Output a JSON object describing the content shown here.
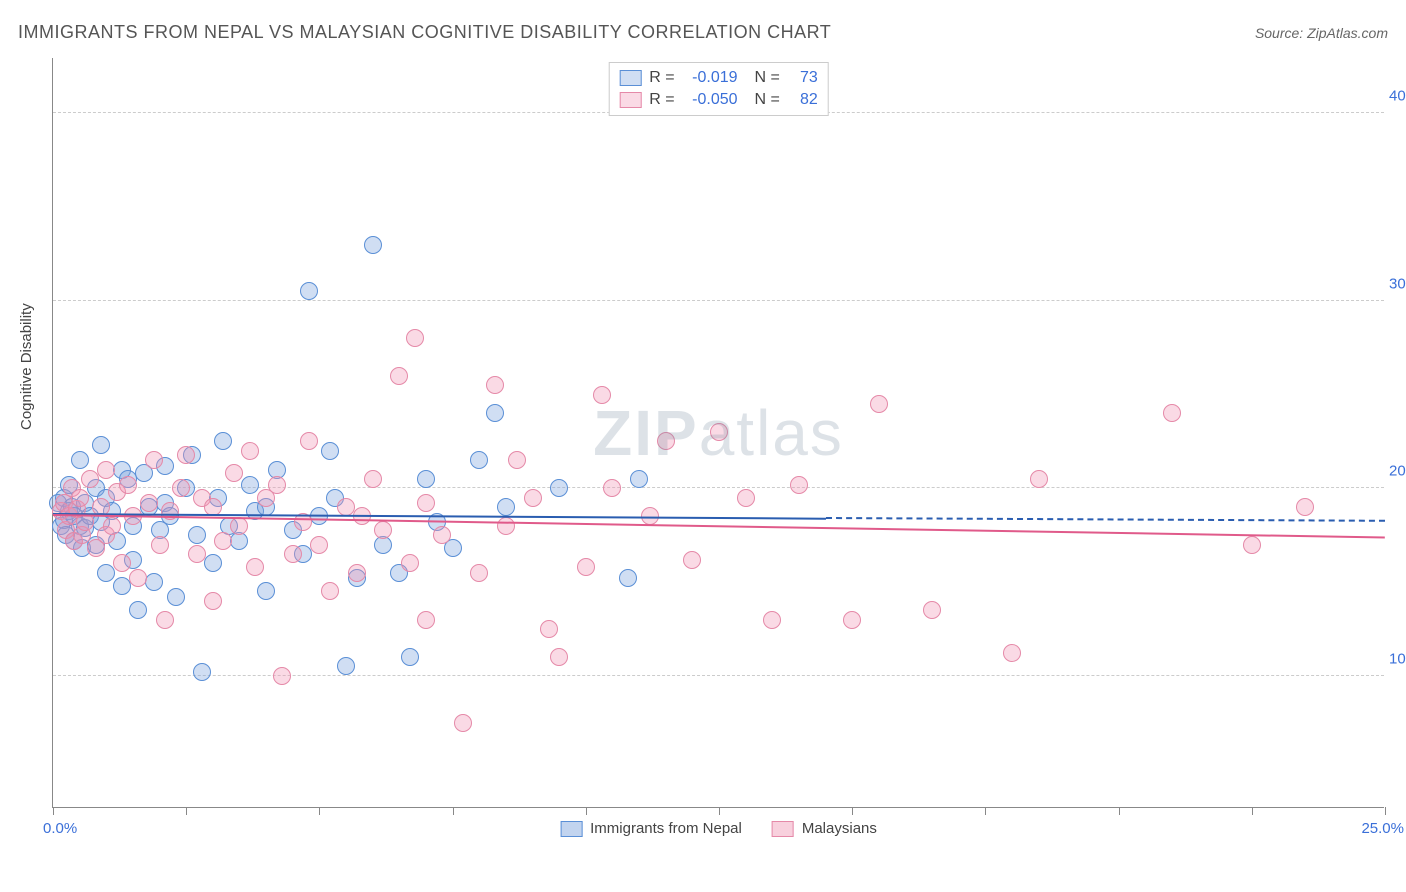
{
  "title": "IMMIGRANTS FROM NEPAL VS MALAYSIAN COGNITIVE DISABILITY CORRELATION CHART",
  "source": "Source: ZipAtlas.com",
  "ylabel": "Cognitive Disability",
  "watermark_bold": "ZIP",
  "watermark_light": "atlas",
  "chart": {
    "type": "scatter",
    "xlim": [
      0,
      25
    ],
    "ylim": [
      3,
      43
    ],
    "xticks": [
      0,
      2.5,
      5,
      7.5,
      10,
      12.5,
      15,
      17.5,
      20,
      22.5,
      25
    ],
    "yticks": [
      10,
      20,
      30,
      40
    ],
    "ytick_labels": [
      "10.0%",
      "20.0%",
      "30.0%",
      "40.0%"
    ],
    "xtick_label_min": "0.0%",
    "xtick_label_max": "25.0%",
    "ytick_color": "#3a6fd8",
    "grid_color": "#cccccc",
    "background_color": "#ffffff",
    "marker_radius": 9,
    "marker_stroke_width": 1.2,
    "series": [
      {
        "name": "Immigrants from Nepal",
        "fill": "rgba(120,160,220,0.35)",
        "stroke": "#5a8fd6",
        "line_color": "#2a5db0",
        "R": "-0.019",
        "N": "73",
        "trend": {
          "x1": 0,
          "y1": 18.6,
          "x2_solid": 14.5,
          "y2_solid": 18.35,
          "x2": 25,
          "y2": 18.2
        },
        "points": [
          [
            0.1,
            19.2
          ],
          [
            0.15,
            18.0
          ],
          [
            0.2,
            19.5
          ],
          [
            0.2,
            18.3
          ],
          [
            0.25,
            17.5
          ],
          [
            0.3,
            20.2
          ],
          [
            0.3,
            18.8
          ],
          [
            0.35,
            19.0
          ],
          [
            0.4,
            17.2
          ],
          [
            0.4,
            18.5
          ],
          [
            0.5,
            21.5
          ],
          [
            0.5,
            18.0
          ],
          [
            0.55,
            16.8
          ],
          [
            0.6,
            19.2
          ],
          [
            0.6,
            17.9
          ],
          [
            0.7,
            18.5
          ],
          [
            0.8,
            20.0
          ],
          [
            0.8,
            17.0
          ],
          [
            0.9,
            22.3
          ],
          [
            0.9,
            18.2
          ],
          [
            1.0,
            19.5
          ],
          [
            1.0,
            15.5
          ],
          [
            1.1,
            18.8
          ],
          [
            1.2,
            17.2
          ],
          [
            1.3,
            21.0
          ],
          [
            1.3,
            14.8
          ],
          [
            1.4,
            20.5
          ],
          [
            1.5,
            18.0
          ],
          [
            1.5,
            16.2
          ],
          [
            1.6,
            13.5
          ],
          [
            1.7,
            20.8
          ],
          [
            1.8,
            19.0
          ],
          [
            1.9,
            15.0
          ],
          [
            2.0,
            17.8
          ],
          [
            2.1,
            21.2
          ],
          [
            2.1,
            19.2
          ],
          [
            2.2,
            18.5
          ],
          [
            2.3,
            14.2
          ],
          [
            2.5,
            20.0
          ],
          [
            2.6,
            21.8
          ],
          [
            2.7,
            17.5
          ],
          [
            2.8,
            10.2
          ],
          [
            3.0,
            16.0
          ],
          [
            3.1,
            19.5
          ],
          [
            3.2,
            22.5
          ],
          [
            3.3,
            18.0
          ],
          [
            3.5,
            17.2
          ],
          [
            3.7,
            20.2
          ],
          [
            3.8,
            18.8
          ],
          [
            4.0,
            14.5
          ],
          [
            4.0,
            19.0
          ],
          [
            4.2,
            21.0
          ],
          [
            4.5,
            17.8
          ],
          [
            4.7,
            16.5
          ],
          [
            4.8,
            30.5
          ],
          [
            5.0,
            18.5
          ],
          [
            5.2,
            22.0
          ],
          [
            5.3,
            19.5
          ],
          [
            5.5,
            10.5
          ],
          [
            5.7,
            15.2
          ],
          [
            6.0,
            33.0
          ],
          [
            6.2,
            17.0
          ],
          [
            6.5,
            15.5
          ],
          [
            6.7,
            11.0
          ],
          [
            7.0,
            20.5
          ],
          [
            7.2,
            18.2
          ],
          [
            7.5,
            16.8
          ],
          [
            8.0,
            21.5
          ],
          [
            8.3,
            24.0
          ],
          [
            8.5,
            19.0
          ],
          [
            9.5,
            20.0
          ],
          [
            10.8,
            15.2
          ],
          [
            11.0,
            20.5
          ]
        ]
      },
      {
        "name": "Malaysians",
        "fill": "rgba(240,150,180,0.35)",
        "stroke": "#e589a8",
        "line_color": "#e05a8a",
        "R": "-0.050",
        "N": "82",
        "trend": {
          "x1": 0,
          "y1": 18.5,
          "x2_solid": 25,
          "y2_solid": 17.3,
          "x2": 25,
          "y2": 17.3
        },
        "points": [
          [
            0.15,
            18.8
          ],
          [
            0.2,
            19.2
          ],
          [
            0.25,
            17.8
          ],
          [
            0.3,
            18.5
          ],
          [
            0.35,
            20.0
          ],
          [
            0.4,
            17.2
          ],
          [
            0.45,
            18.9
          ],
          [
            0.5,
            19.5
          ],
          [
            0.55,
            17.5
          ],
          [
            0.6,
            18.2
          ],
          [
            0.7,
            20.5
          ],
          [
            0.8,
            16.8
          ],
          [
            0.9,
            19.0
          ],
          [
            1.0,
            21.0
          ],
          [
            1.0,
            17.5
          ],
          [
            1.1,
            18.0
          ],
          [
            1.2,
            19.8
          ],
          [
            1.3,
            16.0
          ],
          [
            1.4,
            20.2
          ],
          [
            1.5,
            18.5
          ],
          [
            1.6,
            15.2
          ],
          [
            1.8,
            19.2
          ],
          [
            1.9,
            21.5
          ],
          [
            2.0,
            17.0
          ],
          [
            2.1,
            13.0
          ],
          [
            2.2,
            18.8
          ],
          [
            2.4,
            20.0
          ],
          [
            2.5,
            21.8
          ],
          [
            2.7,
            16.5
          ],
          [
            2.8,
            19.5
          ],
          [
            3.0,
            14.0
          ],
          [
            3.0,
            19.0
          ],
          [
            3.2,
            17.2
          ],
          [
            3.4,
            20.8
          ],
          [
            3.5,
            18.0
          ],
          [
            3.7,
            22.0
          ],
          [
            3.8,
            15.8
          ],
          [
            4.0,
            19.5
          ],
          [
            4.2,
            20.2
          ],
          [
            4.3,
            10.0
          ],
          [
            4.5,
            16.5
          ],
          [
            4.7,
            18.2
          ],
          [
            4.8,
            22.5
          ],
          [
            5.0,
            17.0
          ],
          [
            5.2,
            14.5
          ],
          [
            5.5,
            19.0
          ],
          [
            5.7,
            15.5
          ],
          [
            5.8,
            18.5
          ],
          [
            6.0,
            20.5
          ],
          [
            6.2,
            17.8
          ],
          [
            6.5,
            26.0
          ],
          [
            6.7,
            16.0
          ],
          [
            6.8,
            28.0
          ],
          [
            7.0,
            13.0
          ],
          [
            7.0,
            19.2
          ],
          [
            7.3,
            17.5
          ],
          [
            7.7,
            7.5
          ],
          [
            8.0,
            15.5
          ],
          [
            8.3,
            25.5
          ],
          [
            8.5,
            18.0
          ],
          [
            8.7,
            21.5
          ],
          [
            9.0,
            19.5
          ],
          [
            9.3,
            12.5
          ],
          [
            9.5,
            11.0
          ],
          [
            10.0,
            15.8
          ],
          [
            10.3,
            25.0
          ],
          [
            10.5,
            20.0
          ],
          [
            11.2,
            18.5
          ],
          [
            11.5,
            22.5
          ],
          [
            12.0,
            16.2
          ],
          [
            12.5,
            23.0
          ],
          [
            13.0,
            19.5
          ],
          [
            13.5,
            13.0
          ],
          [
            14.0,
            20.2
          ],
          [
            15.0,
            13.0
          ],
          [
            15.5,
            24.5
          ],
          [
            16.5,
            13.5
          ],
          [
            18.0,
            11.2
          ],
          [
            18.5,
            20.5
          ],
          [
            21.0,
            24.0
          ],
          [
            22.5,
            17.0
          ],
          [
            23.5,
            19.0
          ]
        ]
      }
    ]
  },
  "legend_bottom": [
    {
      "label": "Immigrants from Nepal",
      "fill": "rgba(120,160,220,0.45)",
      "stroke": "#5a8fd6"
    },
    {
      "label": "Malaysians",
      "fill": "rgba(240,150,180,0.45)",
      "stroke": "#e589a8"
    }
  ]
}
